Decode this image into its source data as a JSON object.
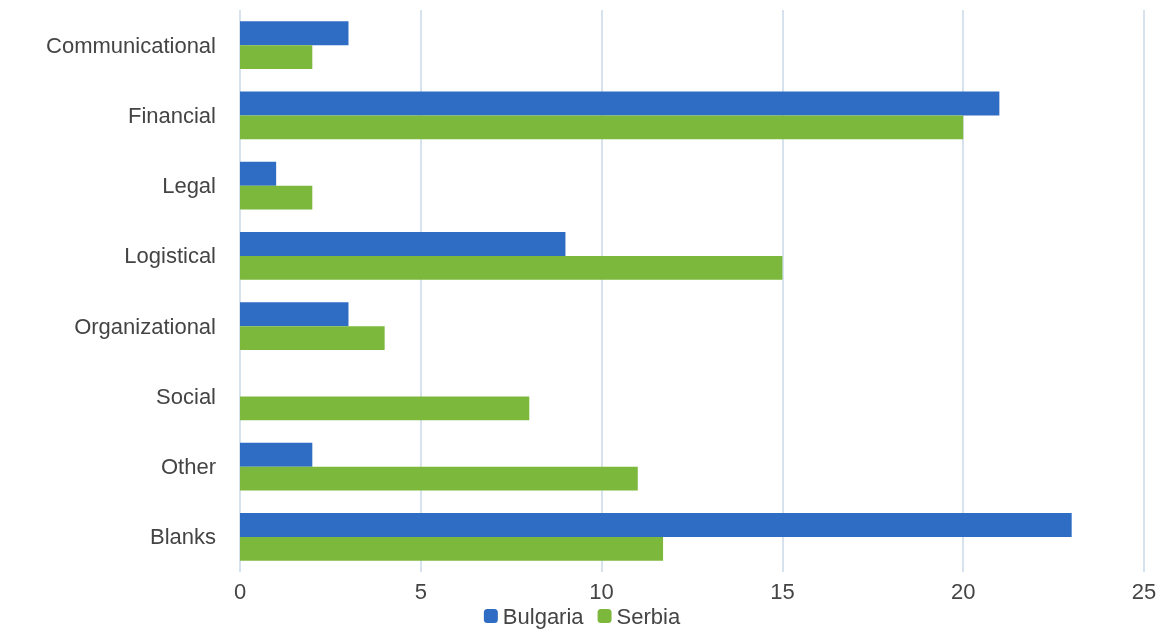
{
  "chart_data": {
    "type": "bar",
    "orientation": "horizontal",
    "categories": [
      "Communicational",
      "Financial",
      "Legal",
      "Logistical",
      "Organizational",
      "Social",
      "Other",
      "Blanks"
    ],
    "series": [
      {
        "name": "Bulgaria",
        "color": "#2f6cc4",
        "values": [
          3,
          21,
          1,
          9,
          3,
          0,
          2,
          23
        ]
      },
      {
        "name": "Serbia",
        "color": "#7cb83c",
        "values": [
          2,
          20,
          2,
          15,
          4,
          8,
          11,
          11.7
        ]
      }
    ],
    "xlim": [
      0,
      25
    ],
    "xticks": [
      0,
      5,
      10,
      15,
      20,
      25
    ],
    "grid": "x",
    "legend": "bottom"
  }
}
